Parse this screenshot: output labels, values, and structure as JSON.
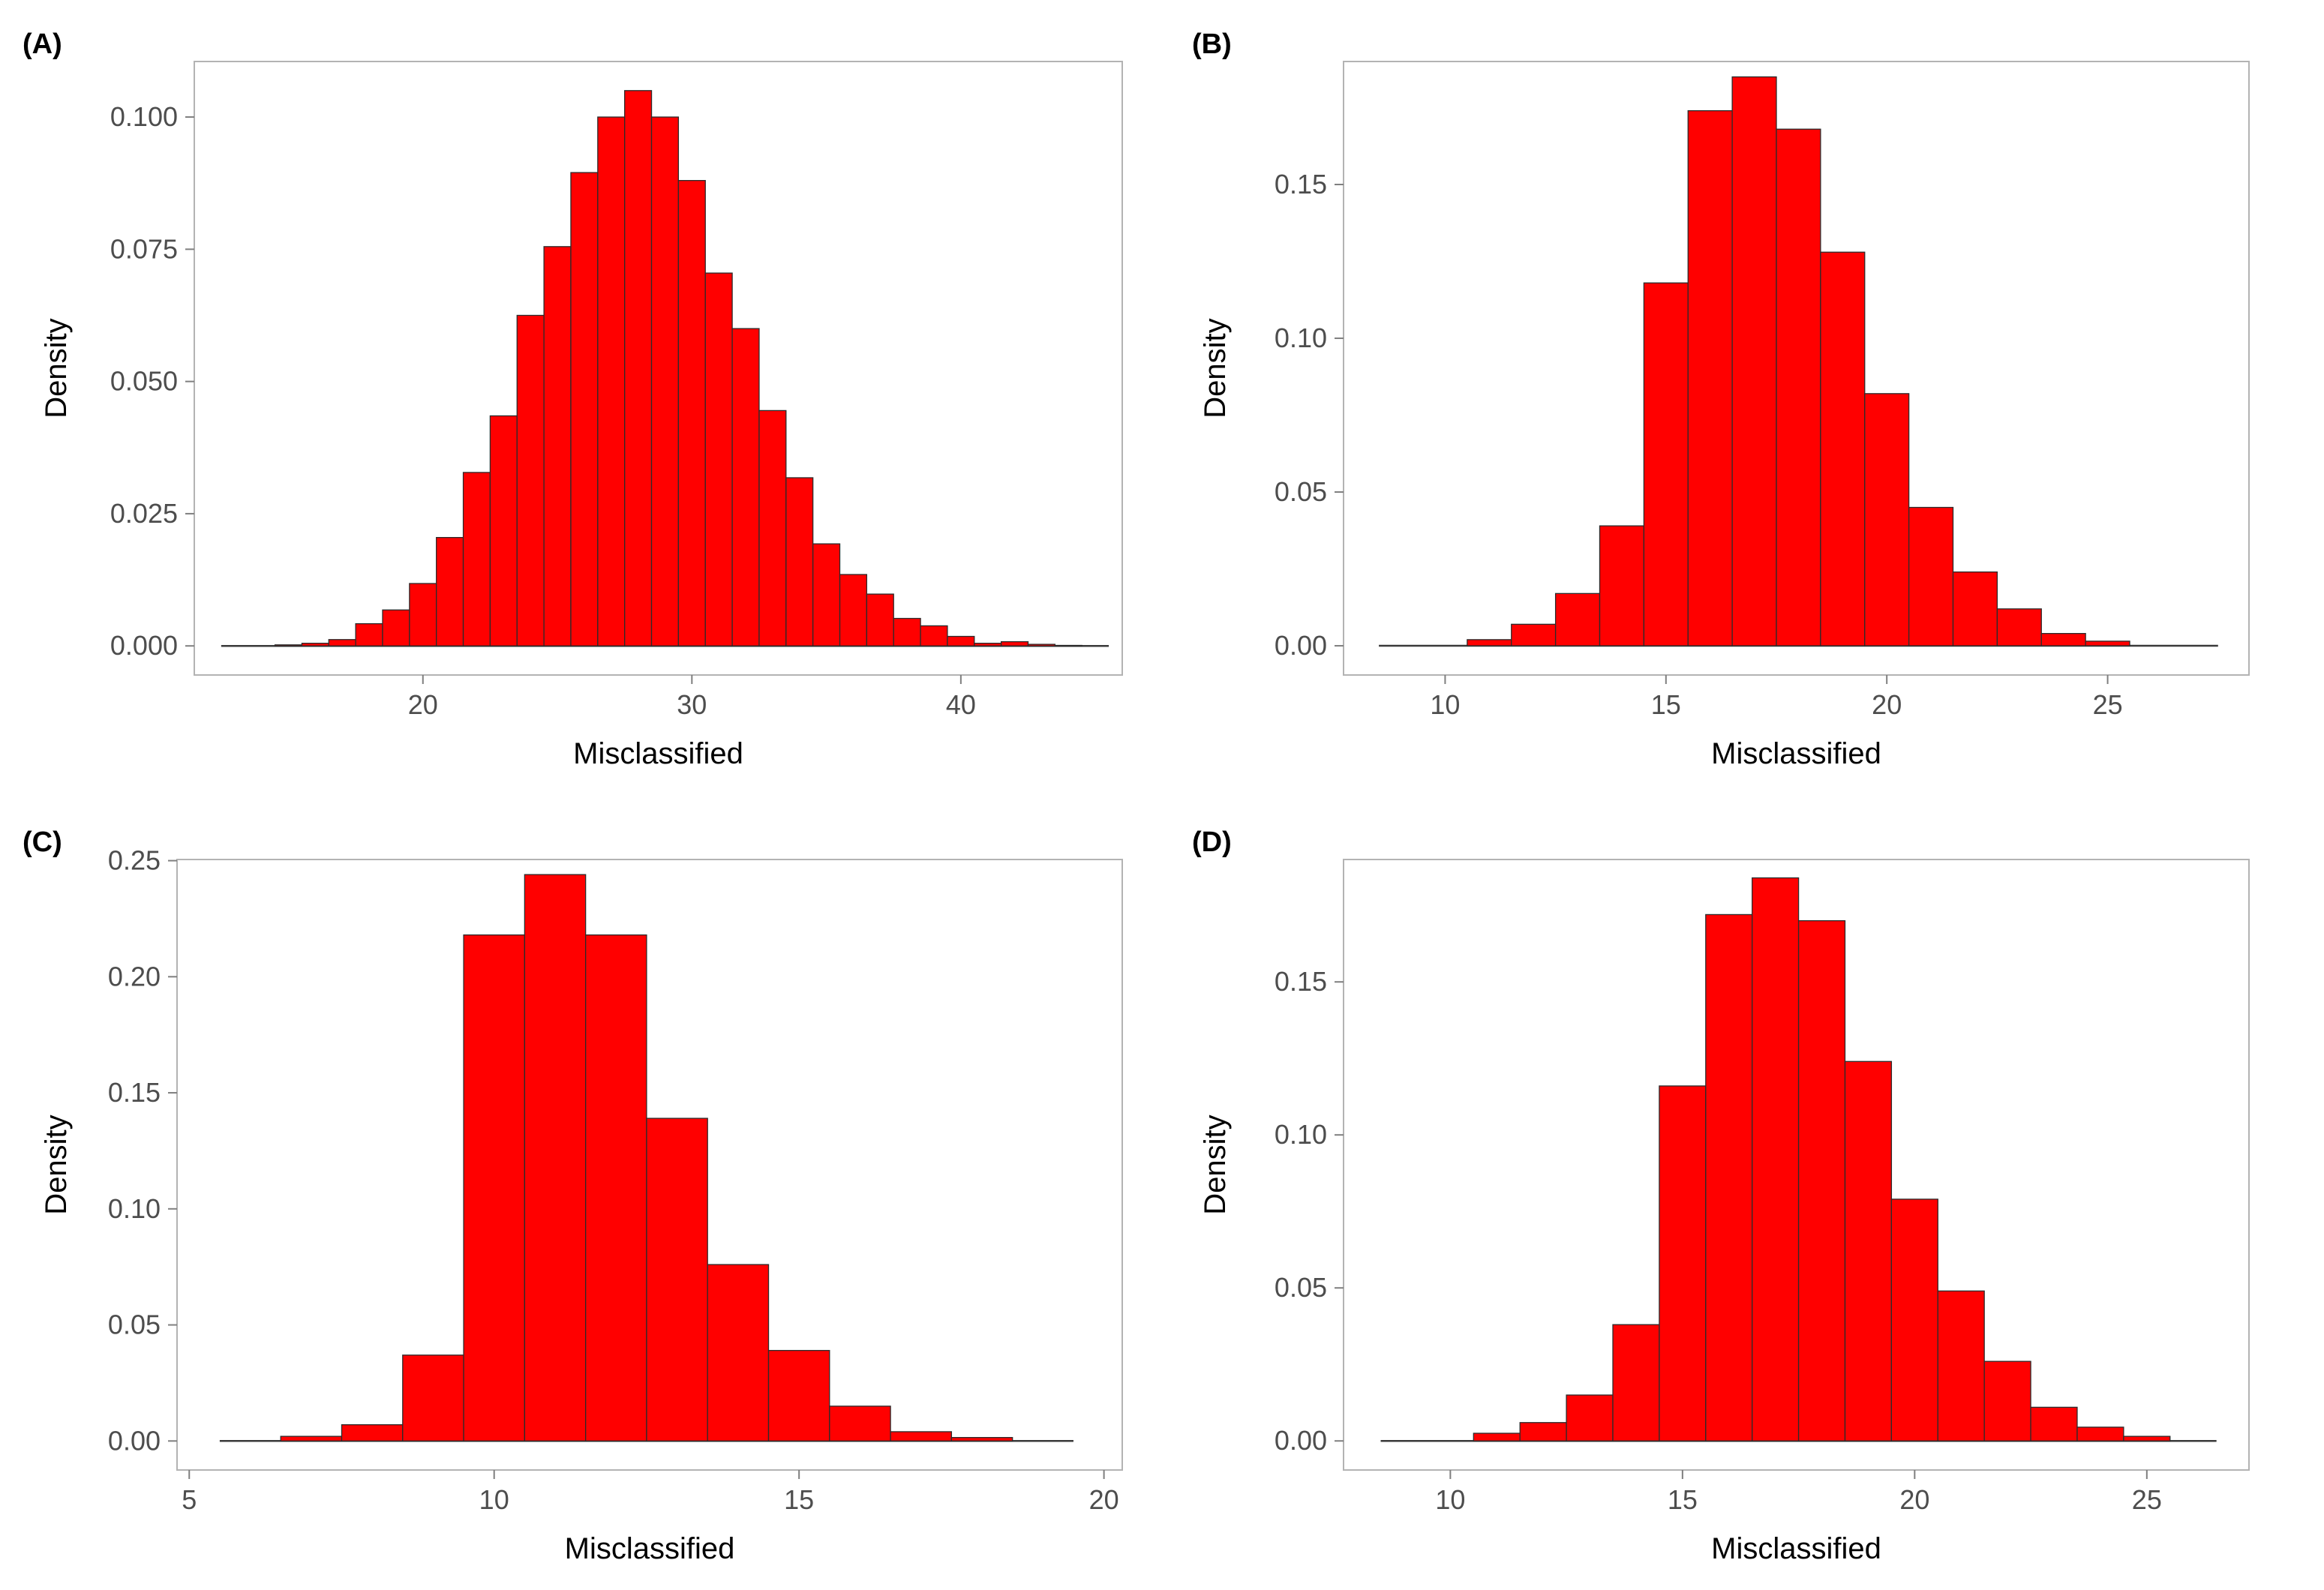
{
  "chart_data": [
    {
      "panel_label": "(A)",
      "type": "bar",
      "subtype": "histogram",
      "title": "",
      "xlabel": "Misclassified",
      "ylabel": "Density",
      "xlim": [
        11.5,
        46
      ],
      "ylim": [
        -0.0055,
        0.1105
      ],
      "xticks": [
        20,
        30,
        40
      ],
      "xtick_labels": [
        "20",
        "30",
        "40"
      ],
      "yticks": [
        0,
        0.025,
        0.05,
        0.075,
        0.1
      ],
      "ytick_labels": [
        "0.000",
        "0.025",
        "0.050",
        "0.075",
        "0.100"
      ],
      "bin_start": 14.5,
      "bin_width": 1,
      "baseline": [
        12.5,
        45.5
      ],
      "values": [
        0.0002,
        0.0005,
        0.0012,
        0.0042,
        0.0068,
        0.0118,
        0.0205,
        0.0328,
        0.0435,
        0.0625,
        0.0755,
        0.0895,
        0.1,
        0.105,
        0.1,
        0.088,
        0.0705,
        0.06,
        0.0445,
        0.0318,
        0.0193,
        0.0135,
        0.0098,
        0.0052,
        0.0038,
        0.0018,
        0.0005,
        0.0008,
        0.0003,
        0.0001
      ],
      "fill": "#ff0000",
      "edge": "#2b2b2b",
      "grid": false
    },
    {
      "panel_label": "(B)",
      "type": "bar",
      "subtype": "histogram",
      "title": "",
      "xlabel": "Misclassified",
      "ylabel": "Density",
      "xlim": [
        7.7,
        28.2
      ],
      "ylim": [
        -0.0095,
        0.19
      ],
      "xticks": [
        10,
        15,
        20,
        25
      ],
      "xtick_labels": [
        "10",
        "15",
        "20",
        "25"
      ],
      "yticks": [
        0,
        0.05,
        0.1,
        0.15
      ],
      "ytick_labels": [
        "0.00",
        "0.05",
        "0.10",
        "0.15"
      ],
      "bin_start": 10.5,
      "bin_width": 1,
      "baseline": [
        8.5,
        27.5
      ],
      "values": [
        0.002,
        0.007,
        0.017,
        0.039,
        0.118,
        0.174,
        0.185,
        0.168,
        0.128,
        0.082,
        0.045,
        0.024,
        0.012,
        0.004,
        0.0015
      ],
      "fill": "#ff0000",
      "edge": "#2b2b2b",
      "grid": false
    },
    {
      "panel_label": "(C)",
      "type": "bar",
      "subtype": "histogram",
      "title": "",
      "xlabel": "Misclassified",
      "ylabel": "Density",
      "xlim": [
        4.8,
        20.3
      ],
      "ylim": [
        -0.0125,
        0.2505
      ],
      "xticks": [
        5,
        10,
        15,
        20
      ],
      "xtick_labels": [
        "5",
        "10",
        "15",
        "20"
      ],
      "yticks": [
        0,
        0.05,
        0.1,
        0.15,
        0.2,
        0.25
      ],
      "ytick_labels": [
        "0.00",
        "0.05",
        "0.10",
        "0.15",
        "0.20",
        "0.25"
      ],
      "bin_start": 6.5,
      "bin_width": 1,
      "baseline": [
        5.5,
        19.5
      ],
      "values": [
        0.002,
        0.007,
        0.037,
        0.218,
        0.244,
        0.218,
        0.139,
        0.076,
        0.039,
        0.015,
        0.004,
        0.0015
      ],
      "fill": "#ff0000",
      "edge": "#2b2b2b",
      "grid": false
    },
    {
      "panel_label": "(D)",
      "type": "bar",
      "subtype": "histogram",
      "title": "",
      "xlabel": "Misclassified",
      "ylabel": "Density",
      "xlim": [
        7.7,
        27.2
      ],
      "ylim": [
        -0.0095,
        0.19
      ],
      "xticks": [
        10,
        15,
        20,
        25
      ],
      "xtick_labels": [
        "10",
        "15",
        "20",
        "25"
      ],
      "yticks": [
        0,
        0.05,
        0.1,
        0.15
      ],
      "ytick_labels": [
        "0.00",
        "0.05",
        "0.10",
        "0.15"
      ],
      "bin_start": 10.5,
      "bin_width": 1,
      "baseline": [
        8.5,
        26.5
      ],
      "values": [
        0.0025,
        0.006,
        0.015,
        0.038,
        0.116,
        0.172,
        0.184,
        0.17,
        0.124,
        0.079,
        0.049,
        0.026,
        0.011,
        0.0045,
        0.0015
      ],
      "fill": "#ff0000",
      "edge": "#2b2b2b",
      "grid": false
    }
  ]
}
